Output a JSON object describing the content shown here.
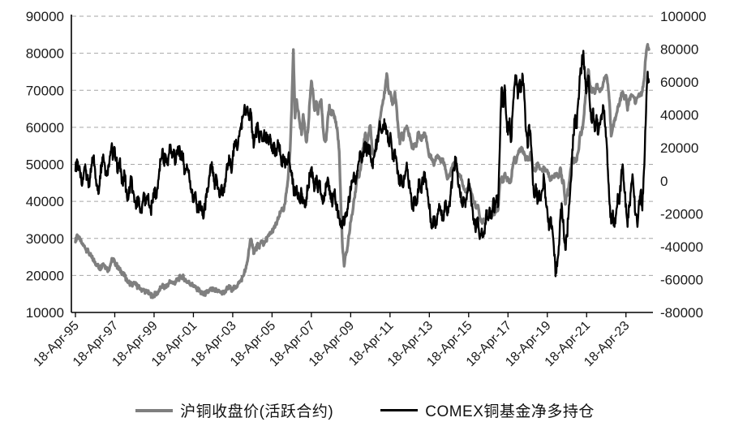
{
  "chart_data": {
    "type": "line",
    "title": "",
    "grid": "horizontal-dashed",
    "grid_color": "#a6a6a6",
    "axis_color": "#000000",
    "legend_position": "bottom",
    "x_tick_labels": [
      "18-Apr-95",
      "18-Apr-97",
      "18-Apr-99",
      "18-Apr-01",
      "18-Apr-03",
      "18-Apr-05",
      "18-Apr-07",
      "18-Apr-09",
      "18-Apr-11",
      "18-Apr-13",
      "18-Apr-15",
      "18-Apr-17",
      "18-Apr-19",
      "18-Apr-21",
      "18-Apr-23"
    ],
    "x_tick_interval_points": 24,
    "x_start": "1995-04",
    "x_freq": "monthly",
    "left_axis": {
      "min": 10000,
      "max": 90000,
      "tick_labels": [
        "90000",
        "80000",
        "70000",
        "60000",
        "50000",
        "40000",
        "30000",
        "20000",
        "10000"
      ]
    },
    "right_axis": {
      "min": -80000,
      "max": 100000,
      "tick_labels": [
        "100000",
        "80000",
        "60000",
        "40000",
        "20000",
        "0",
        "-20000",
        "-40000",
        "-60000",
        "-80000"
      ]
    },
    "series": [
      {
        "name": "沪铜收盘价(活跃合约)",
        "axis": "left",
        "color": "#7f7f7f",
        "stroke_width": 3.4,
        "values": [
          29000,
          31000,
          30200,
          29300,
          28600,
          28200,
          27400,
          26800,
          26200,
          25600,
          24800,
          24200,
          23600,
          23000,
          22400,
          21900,
          22600,
          23200,
          22600,
          22000,
          21500,
          22400,
          23900,
          24400,
          23600,
          22900,
          22100,
          21500,
          21000,
          20400,
          19800,
          19000,
          18400,
          18000,
          17700,
          17400,
          17800,
          17400,
          17000,
          16700,
          16400,
          16100,
          15900,
          15700,
          15400,
          15100,
          14700,
          14400,
          14700,
          15000,
          15300,
          15900,
          16600,
          17300,
          17000,
          16700,
          17400,
          17900,
          18400,
          18100,
          17900,
          18200,
          18600,
          19100,
          19500,
          19800,
          19400,
          18900,
          18400,
          18100,
          17900,
          17500,
          17200,
          16900,
          16600,
          16100,
          15700,
          15100,
          14800,
          15000,
          15300,
          15600,
          15900,
          16200,
          16000,
          15700,
          16100,
          15900,
          15700,
          15400,
          15200,
          15700,
          16100,
          16500,
          16800,
          16400,
          16200,
          16600,
          17000,
          17500,
          18000,
          18600,
          19600,
          20700,
          21800,
          23800,
          27200,
          29800,
          28400,
          25900,
          26800,
          28200,
          27600,
          28800,
          29400,
          28300,
          29300,
          30100,
          30700,
          31300,
          32000,
          32600,
          33400,
          34400,
          35600,
          36800,
          38200,
          37400,
          39600,
          43500,
          47500,
          53500,
          65000,
          81000,
          62500,
          67500,
          64500,
          61000,
          58000,
          63500,
          59500,
          56000,
          59500,
          67000,
          72500,
          69500,
          64500,
          67000,
          63500,
          66000,
          67500,
          60500,
          56500,
          56500,
          62500,
          66000,
          63500,
          64500,
          62500,
          61500,
          58500,
          53500,
          39500,
          27500,
          22500,
          25500,
          27500,
          31000,
          34500,
          36500,
          40500,
          42500,
          47500,
          46500,
          48500,
          52500,
          55500,
          58500,
          55500,
          58500,
          60500,
          54500,
          52500,
          53500,
          56500,
          58500,
          62500,
          65500,
          67500,
          70500,
          74500,
          70000,
          69500,
          67000,
          66500,
          69500,
          65500,
          60000,
          55500,
          58500,
          56500,
          59500,
          60000,
          59000,
          57500,
          55500,
          54500,
          55500,
          54800,
          58500,
          58000,
          56500,
          57500,
          58500,
          57500,
          54500,
          52000,
          52500,
          51000,
          50000,
          52000,
          52500,
          52000,
          50500,
          51500,
          50500,
          48500,
          46000,
          47000,
          48000,
          49000,
          50500,
          49500,
          48000,
          47000,
          46500,
          45500,
          43500,
          42500,
          43500,
          44500,
          43500,
          42000,
          40000,
          39000,
          38700,
          38200,
          35500,
          34300,
          35300,
          35000,
          36500,
          37500,
          36200,
          35700,
          37200,
          36900,
          37600,
          37900,
          44500,
          46300,
          45500,
          47500,
          46500,
          45600,
          45200,
          46200,
          49600,
          52000,
          50600,
          52600,
          53600,
          54200,
          53600,
          52600,
          51200,
          51600,
          51200,
          53200,
          49600,
          48600,
          48900,
          50100,
          49600,
          48600,
          48100,
          48900,
          48600,
          48400,
          46600,
          46100,
          46900,
          46400,
          47100,
          46900,
          46600,
          49100,
          45600,
          45100,
          39200,
          41600,
          43600,
          47600,
          51600,
          50600,
          51600,
          51100,
          53600,
          58100,
          58600,
          61600,
          66600,
          71600,
          75600,
          71600,
          69600,
          70600,
          69100,
          71600,
          70600,
          69600,
          70600,
          71600,
          73100,
          74100,
          71600,
          66600,
          57600,
          60600,
          61600,
          63100,
          65600,
          66100,
          68600,
          69600,
          67600,
          68600,
          64600,
          67600,
          68600,
          68600,
          67900,
          66600,
          68100,
          69100,
          68600,
          69600,
          72600,
          78600,
          82000,
          81000
        ]
      },
      {
        "name": "COMEX铜基金净多持仓",
        "axis": "right",
        "color": "#000000",
        "stroke_width": 2.4,
        "values": [
          6000,
          13000,
          8000,
          2000,
          -3000,
          4000,
          10000,
          3000,
          -4000,
          2000,
          9000,
          15000,
          7000,
          -2000,
          -8000,
          3000,
          11000,
          16000,
          9000,
          3000,
          9000,
          15000,
          21000,
          14000,
          20000,
          12000,
          6000,
          12000,
          4000,
          -3000,
          4000,
          -6000,
          -11000,
          -5000,
          2000,
          -7000,
          -13000,
          -17000,
          -10000,
          -15000,
          -19000,
          -13000,
          -8000,
          -14000,
          -9000,
          -15000,
          -19000,
          -12000,
          -5000,
          -11000,
          -4000,
          4000,
          12000,
          19000,
          11000,
          16000,
          10000,
          16000,
          22000,
          14000,
          19000,
          11000,
          16000,
          21000,
          13000,
          18000,
          11000,
          5000,
          10000,
          5000,
          0,
          -7000,
          -13000,
          -7000,
          -14000,
          -19000,
          -13000,
          -18000,
          -23000,
          -16000,
          -10000,
          -4000,
          3000,
          10000,
          3000,
          -5000,
          3000,
          -4000,
          -10000,
          -3000,
          -9000,
          -2000,
          4000,
          9000,
          13000,
          7000,
          14000,
          20000,
          25000,
          20000,
          27000,
          33000,
          38000,
          44000,
          40000,
          45000,
          37000,
          42000,
          30000,
          22000,
          28000,
          33000,
          26000,
          30000,
          24000,
          28000,
          24000,
          28000,
          22000,
          26000,
          18000,
          23000,
          15000,
          19000,
          23000,
          16000,
          10000,
          14000,
          8000,
          12000,
          16000,
          9000,
          3000,
          -4000,
          -9000,
          -3000,
          -8000,
          -13000,
          -7000,
          -12000,
          -16000,
          -10000,
          -4000,
          3000,
          8000,
          2000,
          -5000,
          1000,
          -7000,
          -2000,
          -8000,
          -14000,
          -9000,
          -4000,
          2000,
          -3000,
          -9000,
          -14000,
          -8000,
          -13000,
          -18000,
          -23000,
          -28000,
          -24000,
          -27000,
          -22000,
          -17000,
          -11000,
          -6000,
          -1000,
          5000,
          -2000,
          6000,
          12000,
          17000,
          12000,
          18000,
          23000,
          17000,
          22000,
          15000,
          9000,
          14000,
          19000,
          24000,
          29000,
          34000,
          29000,
          33000,
          35000,
          29000,
          23000,
          27000,
          20000,
          14000,
          19000,
          12000,
          5000,
          -3000,
          3000,
          -4000,
          2000,
          9000,
          2000,
          -4000,
          -10000,
          -16000,
          -10000,
          -15000,
          -5000,
          1000,
          -7000,
          0,
          5000,
          0,
          -9000,
          -17000,
          -23000,
          -28000,
          -22000,
          -27000,
          -20000,
          -14000,
          -19000,
          -24000,
          -18000,
          -12000,
          -21000,
          -15000,
          -8000,
          0,
          8000,
          13000,
          6000,
          -4000,
          -10000,
          -15000,
          -10000,
          -16000,
          -7000,
          1000,
          -6000,
          -14000,
          -23000,
          -29000,
          -23000,
          -28000,
          -34000,
          -29000,
          -34000,
          -26000,
          -18000,
          -24000,
          -17000,
          -23000,
          -11000,
          -17000,
          -9000,
          -15000,
          20000,
          56000,
          46000,
          58000,
          38000,
          28000,
          38000,
          24000,
          44000,
          58000,
          64000,
          50000,
          60000,
          54000,
          64000,
          50000,
          30000,
          20000,
          34000,
          22000,
          4000,
          -10000,
          -2000,
          -14000,
          -6000,
          -12000,
          -6000,
          2000,
          -10000,
          -18000,
          -30000,
          -22000,
          -28000,
          -40000,
          -58000,
          -52000,
          -40000,
          -22000,
          -16000,
          -30000,
          -42000,
          -34000,
          -20000,
          -6000,
          12000,
          28000,
          40000,
          32000,
          50000,
          64000,
          70000,
          79000,
          62000,
          54000,
          64000,
          46000,
          36000,
          44000,
          30000,
          40000,
          28000,
          34000,
          40000,
          46000,
          36000,
          26000,
          6000,
          -14000,
          -26000,
          -18000,
          -28000,
          -20000,
          -8000,
          -14000,
          2000,
          10000,
          -6000,
          -14000,
          -28000,
          -16000,
          -6000,
          4000,
          -10000,
          -20000,
          -28000,
          -12000,
          -6000,
          -18000,
          6000,
          34000,
          63000,
          60000
        ]
      }
    ]
  }
}
